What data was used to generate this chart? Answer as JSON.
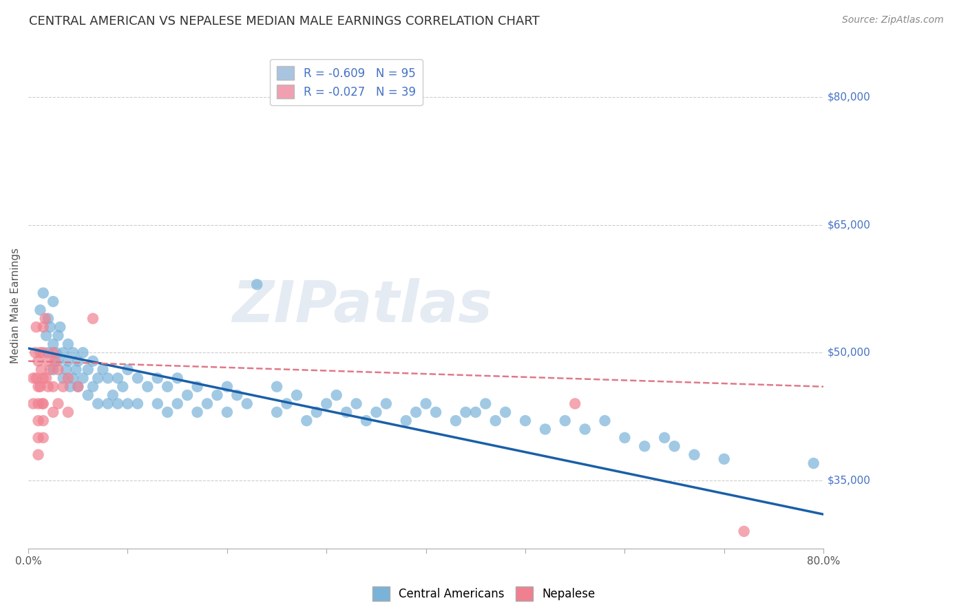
{
  "title": "CENTRAL AMERICAN VS NEPALESE MEDIAN MALE EARNINGS CORRELATION CHART",
  "source": "Source: ZipAtlas.com",
  "ylabel": "Median Male Earnings",
  "xlim": [
    0.0,
    0.8
  ],
  "ylim": [
    27000,
    84000
  ],
  "yticks": [
    35000,
    50000,
    65000,
    80000
  ],
  "ytick_labels": [
    "$35,000",
    "$50,000",
    "$65,000",
    "$80,000"
  ],
  "xticks": [
    0.0,
    0.1,
    0.2,
    0.3,
    0.4,
    0.5,
    0.6,
    0.7,
    0.8
  ],
  "xtick_labels": [
    "0.0%",
    "",
    "",
    "",
    "",
    "",
    "",
    "",
    "80.0%"
  ],
  "legend_entries": [
    {
      "label": "R = -0.609   N = 95",
      "color": "#a8c4e0"
    },
    {
      "label": "R = -0.027   N = 39",
      "color": "#f0a0b0"
    }
  ],
  "watermark": "ZIPatlas",
  "dot_color_ca": "#7ab3d9",
  "dot_color_nep": "#f08090",
  "line_color_ca": "#1a5fa8",
  "line_color_nep": "#e07888",
  "background_color": "#ffffff",
  "grid_color": "#cccccc",
  "title_color": "#333333",
  "axis_label_color": "#555555",
  "right_tick_color": "#4472c4",
  "ca_x": [
    0.012,
    0.015,
    0.018,
    0.02,
    0.02,
    0.022,
    0.025,
    0.025,
    0.025,
    0.028,
    0.03,
    0.03,
    0.032,
    0.035,
    0.035,
    0.038,
    0.04,
    0.04,
    0.042,
    0.045,
    0.045,
    0.048,
    0.05,
    0.05,
    0.055,
    0.055,
    0.06,
    0.06,
    0.065,
    0.065,
    0.07,
    0.07,
    0.075,
    0.08,
    0.08,
    0.085,
    0.09,
    0.09,
    0.095,
    0.1,
    0.1,
    0.11,
    0.11,
    0.12,
    0.13,
    0.13,
    0.14,
    0.14,
    0.15,
    0.15,
    0.16,
    0.17,
    0.17,
    0.18,
    0.19,
    0.2,
    0.2,
    0.21,
    0.22,
    0.23,
    0.25,
    0.25,
    0.26,
    0.27,
    0.28,
    0.29,
    0.3,
    0.31,
    0.32,
    0.33,
    0.34,
    0.35,
    0.36,
    0.38,
    0.39,
    0.4,
    0.41,
    0.43,
    0.44,
    0.45,
    0.46,
    0.47,
    0.48,
    0.5,
    0.52,
    0.54,
    0.56,
    0.58,
    0.6,
    0.62,
    0.64,
    0.65,
    0.67,
    0.7,
    0.79
  ],
  "ca_y": [
    55000,
    57000,
    52000,
    54000,
    50000,
    53000,
    56000,
    51000,
    48000,
    50000,
    52000,
    49000,
    53000,
    50000,
    47000,
    48000,
    51000,
    49000,
    46000,
    50000,
    47000,
    48000,
    49000,
    46000,
    50000,
    47000,
    48000,
    45000,
    49000,
    46000,
    47000,
    44000,
    48000,
    47000,
    44000,
    45000,
    47000,
    44000,
    46000,
    48000,
    44000,
    47000,
    44000,
    46000,
    47000,
    44000,
    46000,
    43000,
    47000,
    44000,
    45000,
    46000,
    43000,
    44000,
    45000,
    46000,
    43000,
    45000,
    44000,
    58000,
    46000,
    43000,
    44000,
    45000,
    42000,
    43000,
    44000,
    45000,
    43000,
    44000,
    42000,
    43000,
    44000,
    42000,
    43000,
    44000,
    43000,
    42000,
    43000,
    43000,
    44000,
    42000,
    43000,
    42000,
    41000,
    42000,
    41000,
    42000,
    40000,
    39000,
    40000,
    39000,
    38000,
    37500,
    37000
  ],
  "nep_x": [
    0.005,
    0.005,
    0.007,
    0.008,
    0.008,
    0.01,
    0.01,
    0.01,
    0.01,
    0.01,
    0.01,
    0.012,
    0.012,
    0.013,
    0.014,
    0.015,
    0.015,
    0.015,
    0.015,
    0.015,
    0.015,
    0.017,
    0.018,
    0.02,
    0.02,
    0.022,
    0.025,
    0.025,
    0.025,
    0.027,
    0.03,
    0.03,
    0.035,
    0.04,
    0.04,
    0.05,
    0.065,
    0.55,
    0.72
  ],
  "nep_y": [
    47000,
    44000,
    50000,
    53000,
    47000,
    49000,
    46000,
    44000,
    42000,
    40000,
    38000,
    50000,
    46000,
    48000,
    44000,
    53000,
    50000,
    47000,
    44000,
    42000,
    40000,
    54000,
    47000,
    49000,
    46000,
    48000,
    50000,
    46000,
    43000,
    49000,
    48000,
    44000,
    46000,
    47000,
    43000,
    46000,
    54000,
    44000,
    29000
  ],
  "ca_trendline_x0": 0.0,
  "ca_trendline_y0": 50500,
  "ca_trendline_x1": 0.8,
  "ca_trendline_y1": 31000,
  "nep_trendline_x0": 0.0,
  "nep_trendline_y0": 49000,
  "nep_trendline_x1": 0.8,
  "nep_trendline_y1": 46000
}
